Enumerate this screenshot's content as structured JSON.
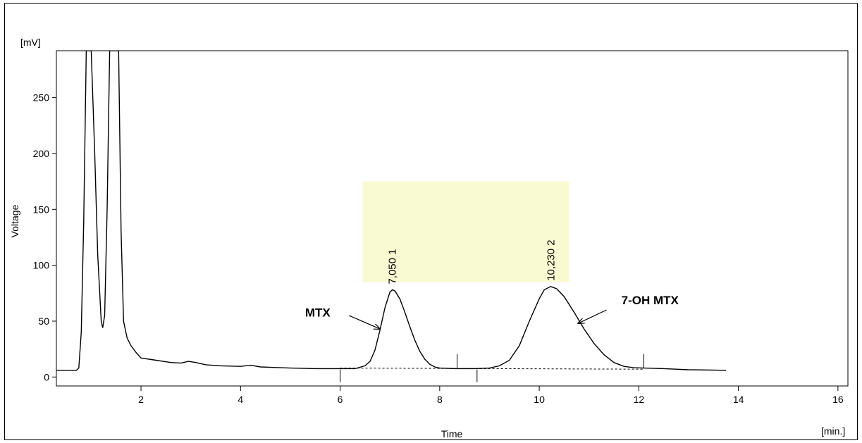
{
  "chart_data": {
    "type": "line",
    "title": "",
    "xlabel": "Time",
    "xunit": "[min.]",
    "ylabel": "Voltage",
    "yunit": "[mV]",
    "xlim": [
      0.3,
      16.2
    ],
    "ylim": [
      -8,
      292
    ],
    "xticks": [
      2,
      4,
      6,
      8,
      10,
      12,
      14,
      16
    ],
    "yticks": [
      0,
      50,
      100,
      150,
      200,
      250
    ],
    "grid": false,
    "colors": {
      "trace": "#000000",
      "highlight": "#fafad2",
      "baseline": "#000000"
    },
    "highlight_region": {
      "x": [
        6.45,
        10.6
      ],
      "y": [
        85,
        175
      ]
    },
    "series": [
      {
        "points": [
          [
            0.3,
            6
          ],
          [
            0.7,
            6
          ],
          [
            0.75,
            8
          ],
          [
            0.8,
            40
          ],
          [
            0.85,
            140
          ],
          [
            0.9,
            292
          ],
          [
            1.0,
            292
          ],
          [
            1.07,
            200
          ],
          [
            1.13,
            110
          ],
          [
            1.2,
            50
          ],
          [
            1.23,
            44
          ],
          [
            1.27,
            55
          ],
          [
            1.32,
            150
          ],
          [
            1.37,
            292
          ],
          [
            1.55,
            292
          ],
          [
            1.6,
            130
          ],
          [
            1.65,
            50
          ],
          [
            1.72,
            35
          ],
          [
            1.8,
            28
          ],
          [
            1.9,
            22
          ],
          [
            2.0,
            17
          ],
          [
            2.3,
            15
          ],
          [
            2.6,
            13
          ],
          [
            2.8,
            12.5
          ],
          [
            2.95,
            14
          ],
          [
            3.1,
            13
          ],
          [
            3.3,
            11
          ],
          [
            3.6,
            10
          ],
          [
            4.0,
            9.5
          ],
          [
            4.2,
            10.5
          ],
          [
            4.4,
            9
          ],
          [
            5.0,
            8
          ],
          [
            5.5,
            7.5
          ],
          [
            6.0,
            7.5
          ],
          [
            6.3,
            7.5
          ],
          [
            6.5,
            10
          ],
          [
            6.6,
            14
          ],
          [
            6.7,
            24
          ],
          [
            6.8,
            42
          ],
          [
            6.9,
            62
          ],
          [
            7.0,
            76
          ],
          [
            7.05,
            78
          ],
          [
            7.1,
            77
          ],
          [
            7.2,
            70
          ],
          [
            7.3,
            58
          ],
          [
            7.4,
            45
          ],
          [
            7.5,
            33
          ],
          [
            7.6,
            23
          ],
          [
            7.7,
            16
          ],
          [
            7.8,
            11.5
          ],
          [
            7.9,
            9
          ],
          [
            8.0,
            8
          ],
          [
            8.3,
            7.5
          ],
          [
            8.7,
            7.5
          ],
          [
            9.0,
            8
          ],
          [
            9.2,
            10
          ],
          [
            9.4,
            15
          ],
          [
            9.6,
            28
          ],
          [
            9.8,
            50
          ],
          [
            10.0,
            70
          ],
          [
            10.1,
            78
          ],
          [
            10.23,
            81
          ],
          [
            10.35,
            79
          ],
          [
            10.5,
            72
          ],
          [
            10.7,
            58
          ],
          [
            10.9,
            43
          ],
          [
            11.1,
            30
          ],
          [
            11.3,
            20
          ],
          [
            11.5,
            13
          ],
          [
            11.7,
            9.5
          ],
          [
            11.9,
            8.3
          ],
          [
            12.1,
            8
          ],
          [
            12.5,
            7.5
          ],
          [
            13.0,
            6.5
          ],
          [
            13.75,
            6
          ]
        ]
      }
    ],
    "baseline": {
      "x": [
        6.0,
        12.1
      ],
      "y": [
        8,
        7
      ]
    },
    "peak_markers": [
      6.0,
      8.35,
      8.75,
      12.1
    ],
    "peaks": [
      {
        "x": 7.05,
        "y": 78,
        "label": "7,050  1"
      },
      {
        "x": 10.23,
        "y": 81,
        "label": "10,230  2"
      }
    ],
    "annotations": [
      {
        "text": "MTX",
        "text_at": [
          5.55,
          54
        ],
        "arrow_from": [
          6.18,
          55
        ],
        "arrow_to": [
          6.8,
          43
        ]
      },
      {
        "text": "7-OH MTX",
        "text_at": [
          11.65,
          65
        ],
        "arrow_from": [
          11.35,
          60
        ],
        "arrow_to": [
          10.78,
          48
        ]
      }
    ]
  }
}
